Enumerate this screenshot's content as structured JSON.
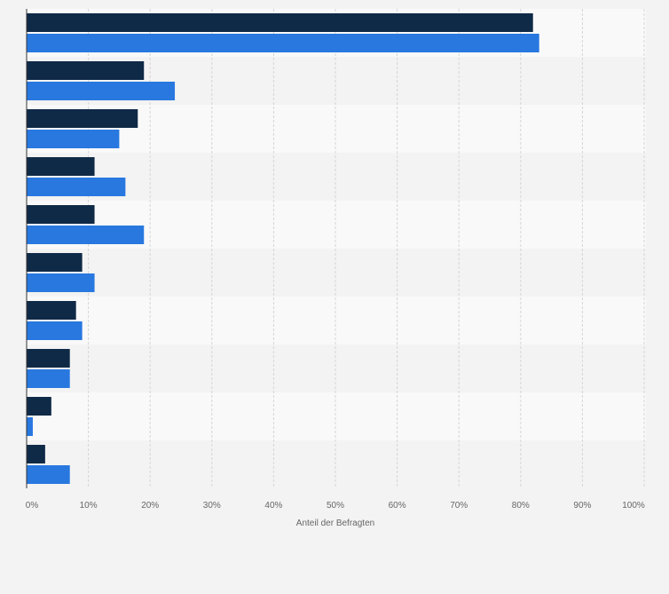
{
  "chart_data": {
    "type": "bar",
    "orientation": "horizontal",
    "title": "",
    "xlabel": "Anteil der Befragten",
    "ylabel": "",
    "xlim": [
      0,
      100
    ],
    "x_ticks": [
      "0%",
      "10%",
      "20%",
      "30%",
      "40%",
      "50%",
      "60%",
      "70%",
      "80%",
      "90%",
      "100%"
    ],
    "categories": [
      "",
      "",
      "",
      "",
      "",
      "",
      "",
      "",
      "",
      ""
    ],
    "series": [
      {
        "color": "#0f2a47",
        "values": [
          82,
          19,
          18,
          11,
          11,
          9,
          8,
          7,
          4,
          3
        ]
      },
      {
        "color": "#2878e0",
        "values": [
          83,
          24,
          15,
          16,
          19,
          11,
          9,
          7,
          1,
          7
        ]
      }
    ],
    "grid": true,
    "legend": false,
    "value_unit": "%"
  },
  "colors": {
    "page_background": "#f3f3f3",
    "band_light": "#f9f9f9",
    "band_dark": "#f3f3f3",
    "grid": "#d5d5d5",
    "axis": "#333333",
    "tick_text": "#666666"
  }
}
